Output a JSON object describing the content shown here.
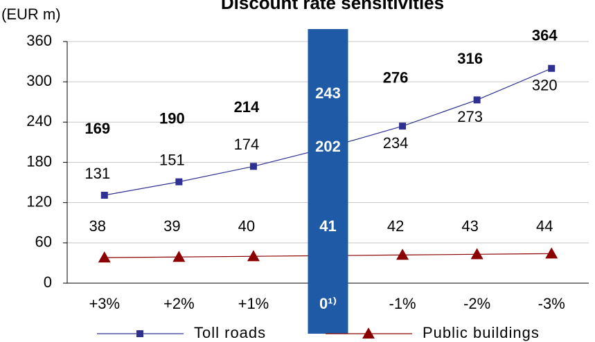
{
  "chart_data": {
    "type": "line",
    "title": "Discount rate sensitivities",
    "unit_label": "(EUR m)",
    "categories": [
      "+3%",
      "+2%",
      "+1%",
      "0¹⁾",
      "-1%",
      "-2%",
      "-3%"
    ],
    "series": [
      {
        "name": "Toll roads",
        "color": "#2e3192",
        "marker": "square",
        "values": [
          131,
          151,
          174,
          202,
          234,
          273,
          320
        ]
      },
      {
        "name": "Public buildings",
        "color": "#8b0000",
        "marker": "triangle",
        "values": [
          38,
          39,
          40,
          41,
          42,
          43,
          44
        ]
      }
    ],
    "totals": [
      169,
      190,
      214,
      243,
      276,
      316,
      364
    ],
    "highlight_index": 3,
    "highlight_color": "#1f5aa6",
    "ylim": [
      0,
      360
    ],
    "yticks": [
      0,
      60,
      120,
      180,
      240,
      300,
      360
    ],
    "grid": true
  }
}
